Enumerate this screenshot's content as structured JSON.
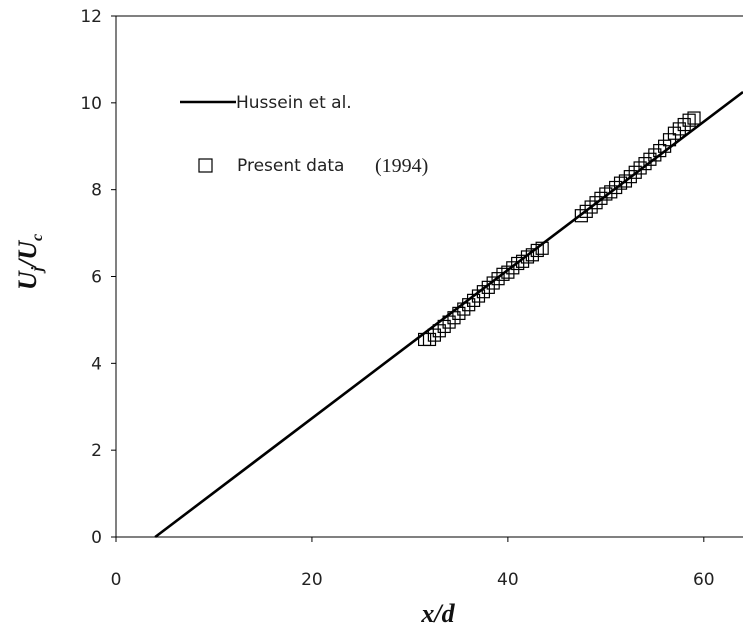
{
  "chart_data": {
    "type": "scatter",
    "xlabel": "x/d",
    "ylabel": "U",
    "ylabel_sub_1": "j",
    "ylabel_mid": "/U",
    "ylabel_sub_2": "c",
    "xlim": [
      0,
      64
    ],
    "ylim": [
      0,
      12
    ],
    "xticks": [
      0,
      20,
      40,
      60
    ],
    "yticks": [
      0,
      2,
      4,
      6,
      8,
      10,
      12
    ],
    "grid": false,
    "legend_position": "top-left",
    "series": [
      {
        "name": "Hussein et al.",
        "kind": "line",
        "x": [
          4,
          64
        ],
        "y": [
          0,
          10.25
        ]
      },
      {
        "name": "Present data",
        "kind": "markers",
        "marker": "hollow-square",
        "x": [
          31.5,
          32,
          32.5,
          33,
          33.5,
          34,
          34.5,
          35,
          35.5,
          36,
          36.5,
          37,
          37.5,
          38,
          38.5,
          39,
          39.5,
          40,
          40.5,
          41,
          41.5,
          42,
          42.5,
          43,
          43.5,
          47.5,
          48,
          48.5,
          49,
          49.5,
          50,
          50.5,
          51,
          51.5,
          52,
          52.5,
          53,
          53.5,
          54,
          54.5,
          55,
          55.5,
          56,
          56.5,
          57,
          57.5,
          58,
          58.5,
          59
        ],
        "y": [
          4.55,
          4.55,
          4.65,
          4.75,
          4.85,
          4.95,
          5.05,
          5.15,
          5.25,
          5.35,
          5.45,
          5.55,
          5.65,
          5.75,
          5.85,
          5.95,
          6.05,
          6.1,
          6.2,
          6.3,
          6.35,
          6.45,
          6.5,
          6.6,
          6.65,
          7.4,
          7.5,
          7.6,
          7.7,
          7.8,
          7.9,
          7.95,
          8.05,
          8.15,
          8.2,
          8.3,
          8.4,
          8.5,
          8.6,
          8.7,
          8.8,
          8.9,
          9.0,
          9.15,
          9.3,
          9.4,
          9.5,
          9.6,
          9.65
        ]
      }
    ],
    "legend": [
      {
        "label_main": "Hussein et al.",
        "label_suffix": ""
      },
      {
        "label_main": "Present data",
        "label_suffix": "(1994)"
      }
    ]
  }
}
